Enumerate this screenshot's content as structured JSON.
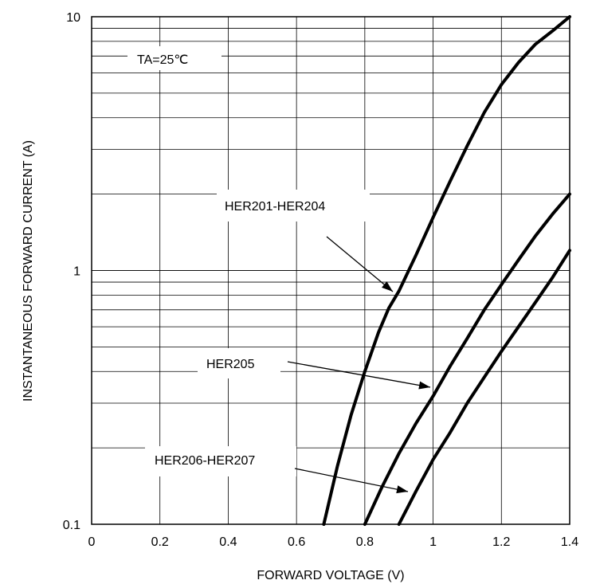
{
  "chart_data": {
    "type": "line",
    "xlabel": "FORWARD VOLTAGE (V)",
    "ylabel": "INSTANTANEOUS FORWARD CURRENT (A)",
    "xlim": [
      0,
      1.4
    ],
    "ylim": [
      0.1,
      10
    ],
    "y_scale": "log",
    "grid": true,
    "x_ticks": [
      "0",
      "0.2",
      "0.4",
      "0.6",
      "0.8",
      "1",
      "1.2",
      "1.4"
    ],
    "y_ticks": [
      "0.1",
      "1",
      "10"
    ],
    "annotation_text": "TA=25℃",
    "series": [
      {
        "name": "HER201-HER204",
        "x": [
          0.68,
          0.72,
          0.76,
          0.8,
          0.84,
          0.87,
          0.9,
          0.95,
          1.0,
          1.05,
          1.1,
          1.15,
          1.2,
          1.25,
          1.3,
          1.35,
          1.4
        ],
        "y": [
          0.1,
          0.17,
          0.27,
          0.4,
          0.57,
          0.71,
          0.83,
          1.15,
          1.62,
          2.25,
          3.1,
          4.2,
          5.4,
          6.6,
          7.8,
          8.8,
          10.0
        ]
      },
      {
        "name": "HER205",
        "x": [
          0.8,
          0.85,
          0.9,
          0.95,
          1.0,
          1.05,
          1.1,
          1.15,
          1.2,
          1.25,
          1.3,
          1.35,
          1.4
        ],
        "y": [
          0.1,
          0.14,
          0.19,
          0.25,
          0.32,
          0.42,
          0.54,
          0.7,
          0.88,
          1.1,
          1.37,
          1.67,
          2.0
        ]
      },
      {
        "name": "HER206-HER207",
        "x": [
          0.9,
          0.95,
          1.0,
          1.05,
          1.1,
          1.15,
          1.2,
          1.25,
          1.3,
          1.35,
          1.4
        ],
        "y": [
          0.1,
          0.135,
          0.18,
          0.23,
          0.3,
          0.38,
          0.48,
          0.6,
          0.75,
          0.94,
          1.2
        ]
      }
    ]
  }
}
